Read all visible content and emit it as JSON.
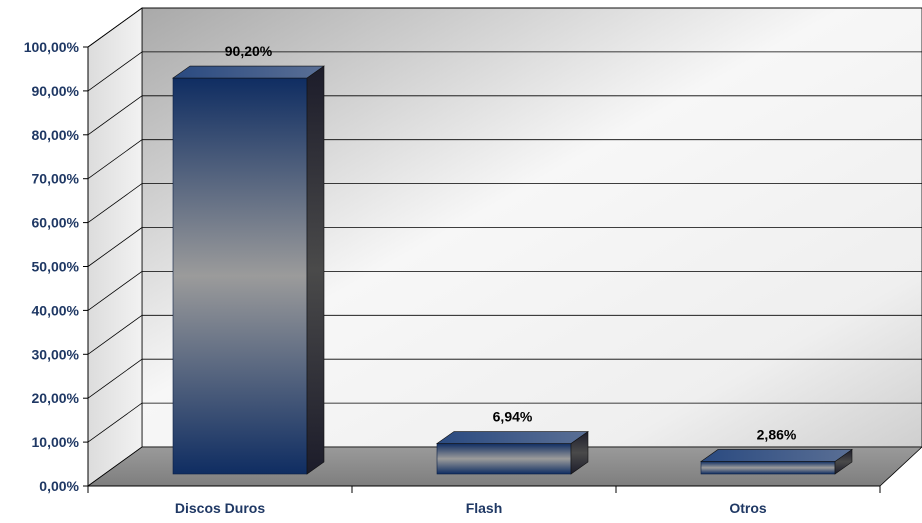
{
  "chart_data": {
    "type": "bar",
    "categories": [
      "Discos Duros",
      "Flash",
      "Otros"
    ],
    "values": [
      90.2,
      6.94,
      2.86
    ],
    "value_labels": [
      "90,20%",
      "6,94%",
      "2,86%"
    ],
    "y_ticks": [
      "0,00%",
      "10,00%",
      "20,00%",
      "30,00%",
      "40,00%",
      "50,00%",
      "60,00%",
      "70,00%",
      "80,00%",
      "90,00%",
      "100,00%"
    ],
    "ylim": [
      0,
      100
    ],
    "title": "",
    "xlabel": "",
    "ylabel": "",
    "grid": true,
    "legend": "none",
    "style": "3d",
    "colors": {
      "bar_dark": "#123063",
      "bar_mid": "#9a9a9a",
      "wall_light": "#f4f4f4",
      "wall_dark": "#bdbdbd",
      "floor": "#8c8c8c",
      "label": "#1f3864",
      "value_label": "#000000"
    }
  }
}
